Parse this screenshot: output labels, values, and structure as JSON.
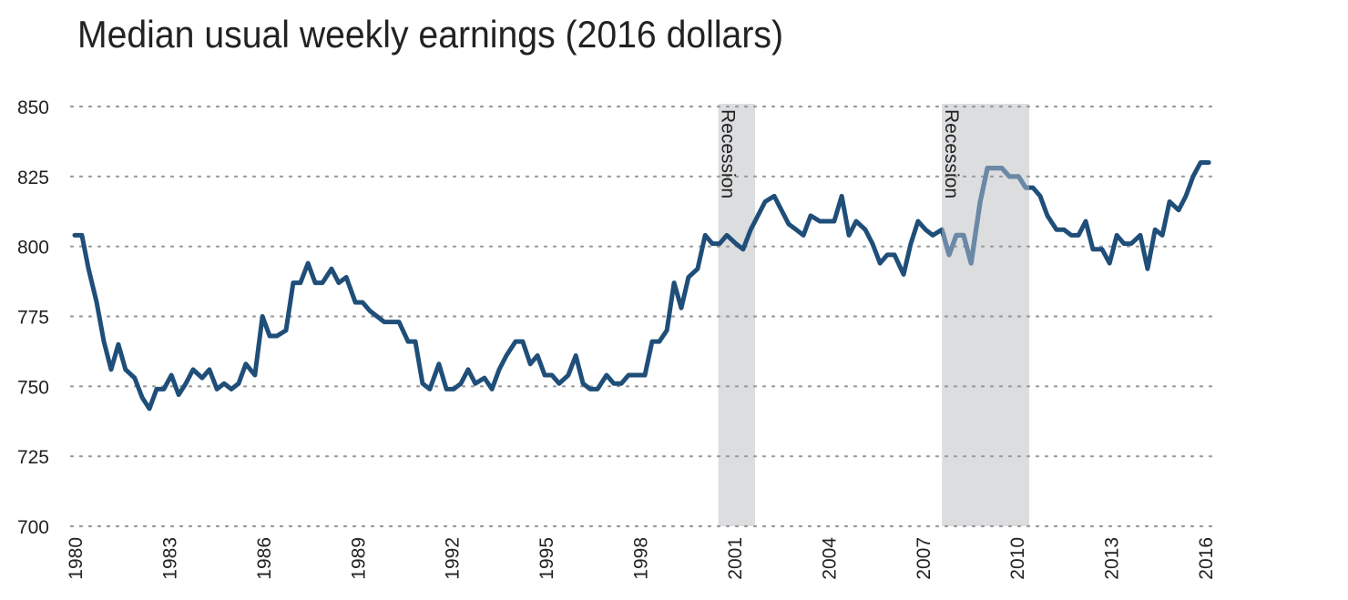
{
  "chart_data": {
    "type": "line",
    "title": "Median usual weekly earnings (2016 dollars)",
    "x": [
      1980.0,
      1980.23,
      1980.44,
      1980.7,
      1980.93,
      1981.16,
      1981.39,
      1981.62,
      1981.91,
      1982.15,
      1982.38,
      1982.61,
      1982.84,
      1983.08,
      1983.31,
      1983.54,
      1983.77,
      1984.06,
      1984.29,
      1984.53,
      1984.76,
      1984.99,
      1985.22,
      1985.45,
      1985.74,
      1985.98,
      1986.21,
      1986.44,
      1986.73,
      1986.96,
      1987.19,
      1987.43,
      1987.66,
      1987.89,
      1988.18,
      1988.41,
      1988.65,
      1988.94,
      1989.17,
      1989.4,
      1989.63,
      1989.86,
      1990.1,
      1990.33,
      1990.62,
      1990.85,
      1991.08,
      1991.31,
      1991.6,
      1991.84,
      1992.07,
      1992.3,
      1992.53,
      1992.76,
      1993.05,
      1993.29,
      1993.52,
      1993.75,
      1994.04,
      1994.27,
      1994.51,
      1994.74,
      1994.97,
      1995.2,
      1995.43,
      1995.72,
      1995.96,
      1996.19,
      1996.42,
      1996.65,
      1996.94,
      1997.17,
      1997.41,
      1997.64,
      1997.87,
      1998.16,
      1998.39,
      1998.62,
      1998.86,
      1999.09,
      1999.32,
      1999.55,
      1999.84,
      2000.08,
      2000.31,
      2000.54,
      2000.77,
      2001.06,
      2001.29,
      2001.53,
      2001.76,
      2001.99,
      2002.28,
      2002.51,
      2002.74,
      2002.98,
      2003.21,
      2003.44,
      2003.73,
      2003.96,
      2004.19,
      2004.43,
      2004.66,
      2004.89,
      2005.18,
      2005.41,
      2005.65,
      2005.88,
      2006.11,
      2006.4,
      2006.63,
      2006.86,
      2007.1,
      2007.33,
      2007.62,
      2007.85,
      2008.08,
      2008.31,
      2008.55,
      2008.84,
      2009.07,
      2009.3,
      2009.53,
      2009.77,
      2010.06,
      2010.29,
      2010.52,
      2010.75,
      2010.98,
      2011.27,
      2011.51,
      2011.74,
      2011.97,
      2012.2,
      2012.43,
      2012.72,
      2012.96,
      2013.19,
      2013.42,
      2013.65,
      2013.94,
      2014.17,
      2014.41,
      2014.64,
      2014.87,
      2015.16,
      2015.39,
      2015.62,
      2015.86,
      2016.12
    ],
    "series": [
      {
        "name": "Median usual weekly earnings",
        "color": "#1f4e79",
        "values": [
          804,
          804,
          792,
          780,
          766,
          756,
          765,
          756,
          753,
          746,
          742,
          749,
          749,
          754,
          747,
          751,
          756,
          753,
          756,
          749,
          751,
          749,
          751,
          758,
          754,
          775,
          768,
          768,
          770,
          787,
          787,
          794,
          787,
          787,
          792,
          787,
          789,
          780,
          780,
          777,
          775,
          773,
          773,
          773,
          766,
          766,
          751,
          749,
          758,
          749,
          749,
          751,
          756,
          751,
          753,
          749,
          756,
          761,
          766,
          766,
          758,
          761,
          754,
          754,
          751,
          754,
          761,
          751,
          749,
          749,
          754,
          751,
          751,
          754,
          754,
          754,
          766,
          766,
          770,
          787,
          778,
          789,
          792,
          804,
          801,
          801,
          804,
          801,
          799,
          806,
          811,
          816,
          818,
          813,
          808,
          806,
          804,
          811,
          809,
          809,
          809,
          818,
          804,
          809,
          806,
          801,
          794,
          797,
          797,
          790,
          801,
          809,
          806,
          804,
          806,
          797,
          804,
          804,
          794,
          816,
          828,
          828,
          828,
          825,
          825,
          821,
          821,
          818,
          811,
          806,
          806,
          804,
          804,
          809,
          799,
          799,
          794,
          804,
          801,
          801,
          804,
          792,
          806,
          804,
          816,
          813,
          818,
          825,
          830,
          830
        ]
      }
    ],
    "recessions": [
      {
        "start": 2000.5,
        "end": 2001.67,
        "label": "Recession",
        "color": "#dcdddf"
      },
      {
        "start": 2007.62,
        "end": 2010.4,
        "label": "Recession",
        "color": "#dcdddf",
        "line_color": "#6b88a6"
      }
    ],
    "xlim": [
      1980,
      2016
    ],
    "xticks": [
      1980,
      1983,
      1986,
      1989,
      1992,
      1995,
      1998,
      2001,
      2004,
      2007,
      2010,
      2013,
      2016
    ],
    "ylim": [
      700,
      850
    ],
    "yticks": [
      700,
      725,
      750,
      775,
      800,
      825,
      850
    ],
    "grid": true
  }
}
